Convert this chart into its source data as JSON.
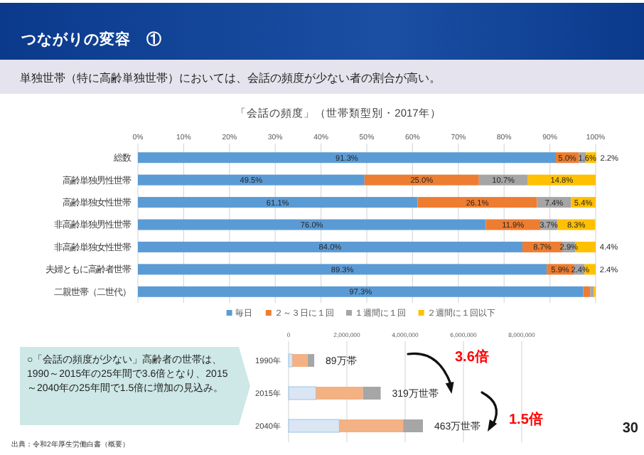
{
  "chart_data": [
    {
      "type": "bar",
      "orientation": "horizontal",
      "stacked": true,
      "title": "「会話の頻度」（世帯類型別・2017年）",
      "annotations": [
        "つながりの変容　①",
        "単独世帯（特に高齢単独世帯）においては、会話の頻度が少ない者の割合が高い。"
      ],
      "categories": [
        "総数",
        "高齢単独男性世帯",
        "高齢単独女性世帯",
        "非高齢単独男性世帯",
        "非高齢単独女性世帯",
        "夫婦ともに高齢者世帯",
        "二親世帯（二世代）"
      ],
      "series": [
        {
          "name": "毎日",
          "color": "#5b9bd5",
          "values": [
            91.3,
            49.5,
            61.1,
            76.0,
            84.0,
            89.3,
            97.3
          ],
          "value_labels": [
            "91.3%",
            "49.5%",
            "61.1%",
            "76.0%",
            "84.0%",
            "89.3%",
            "97.3%"
          ]
        },
        {
          "name": "２～３日に１回",
          "color": "#ed7d31",
          "values": [
            5.0,
            25.0,
            26.1,
            11.9,
            8.7,
            5.9,
            1.5
          ],
          "value_labels": [
            "5.0%",
            "25.0%",
            "26.1%",
            "11.9%",
            "8.7%",
            "5.9%",
            null
          ]
        },
        {
          "name": "１週間に１回",
          "color": "#a5a5a5",
          "values": [
            1.6,
            10.7,
            7.4,
            3.7,
            2.9,
            2.4,
            0.8
          ],
          "value_labels": [
            "1.6%",
            "10.7%",
            "7.4%",
            "3.7%",
            "2.9%",
            "2.4%",
            null
          ]
        },
        {
          "name": "２週間に１回以下",
          "color": "#ffc000",
          "values": [
            2.2,
            14.8,
            5.4,
            8.3,
            4.4,
            2.4,
            0.4
          ],
          "value_labels": [
            "2.2%",
            "14.8%",
            "5.4%",
            "8.3%",
            "4.4%",
            "2.4%",
            null
          ]
        }
      ],
      "xlim": [
        0,
        100
      ],
      "xticks": [
        {
          "value": 0,
          "label": "0%"
        },
        {
          "value": 10,
          "label": "10%"
        },
        {
          "value": 20,
          "label": "20%"
        },
        {
          "value": 30,
          "label": "30%"
        },
        {
          "value": 40,
          "label": "40%"
        },
        {
          "value": 50,
          "label": "50%"
        },
        {
          "value": 60,
          "label": "60%"
        },
        {
          "value": 70,
          "label": "70%"
        },
        {
          "value": 80,
          "label": "80%"
        },
        {
          "value": 90,
          "label": "90%"
        },
        {
          "value": 100,
          "label": "100%"
        }
      ],
      "grid": "x",
      "legend": "bottom"
    },
    {
      "type": "bar",
      "orientation": "horizontal",
      "stacked": true,
      "annotations": [
        "○「会話の頻度が少ない」高齢者の世帯は、1990～2015年の25年間で3.6倍となり、2015～2040年の25年間で1.5倍に増加の見込み。",
        "出典：令和2年厚生労働白書（概要）",
        "30",
        "3.6倍",
        "1.5倍",
        {
          "text": "89万帯",
          "x": 880000,
          "y": "1990年"
        },
        {
          "text": "319万世帯",
          "x": 3160000,
          "y": "2015年"
        },
        {
          "text": "463万世帯",
          "x": 4610000,
          "y": "2040年"
        }
      ],
      "categories": [
        "1990年",
        "2015年",
        "2040年"
      ],
      "series": [
        {
          "color": "#dae6f4",
          "values": [
            130000,
            940000,
            1740000
          ]
        },
        {
          "color": "#f4b183",
          "values": [
            520000,
            1610000,
            2190000
          ]
        },
        {
          "color": "#a6a6a6",
          "values": [
            230000,
            610000,
            680000
          ]
        }
      ],
      "xlim": [
        0,
        8000000
      ],
      "xticks": [
        {
          "value": 0,
          "label": "0"
        },
        {
          "value": 2000000,
          "label": "2,000,000"
        },
        {
          "value": 4000000,
          "label": "4,000,000"
        },
        {
          "value": 6000000,
          "label": "6,000,000"
        },
        {
          "value": 8000000,
          "label": "8,000,000"
        }
      ],
      "grid": "x"
    }
  ]
}
